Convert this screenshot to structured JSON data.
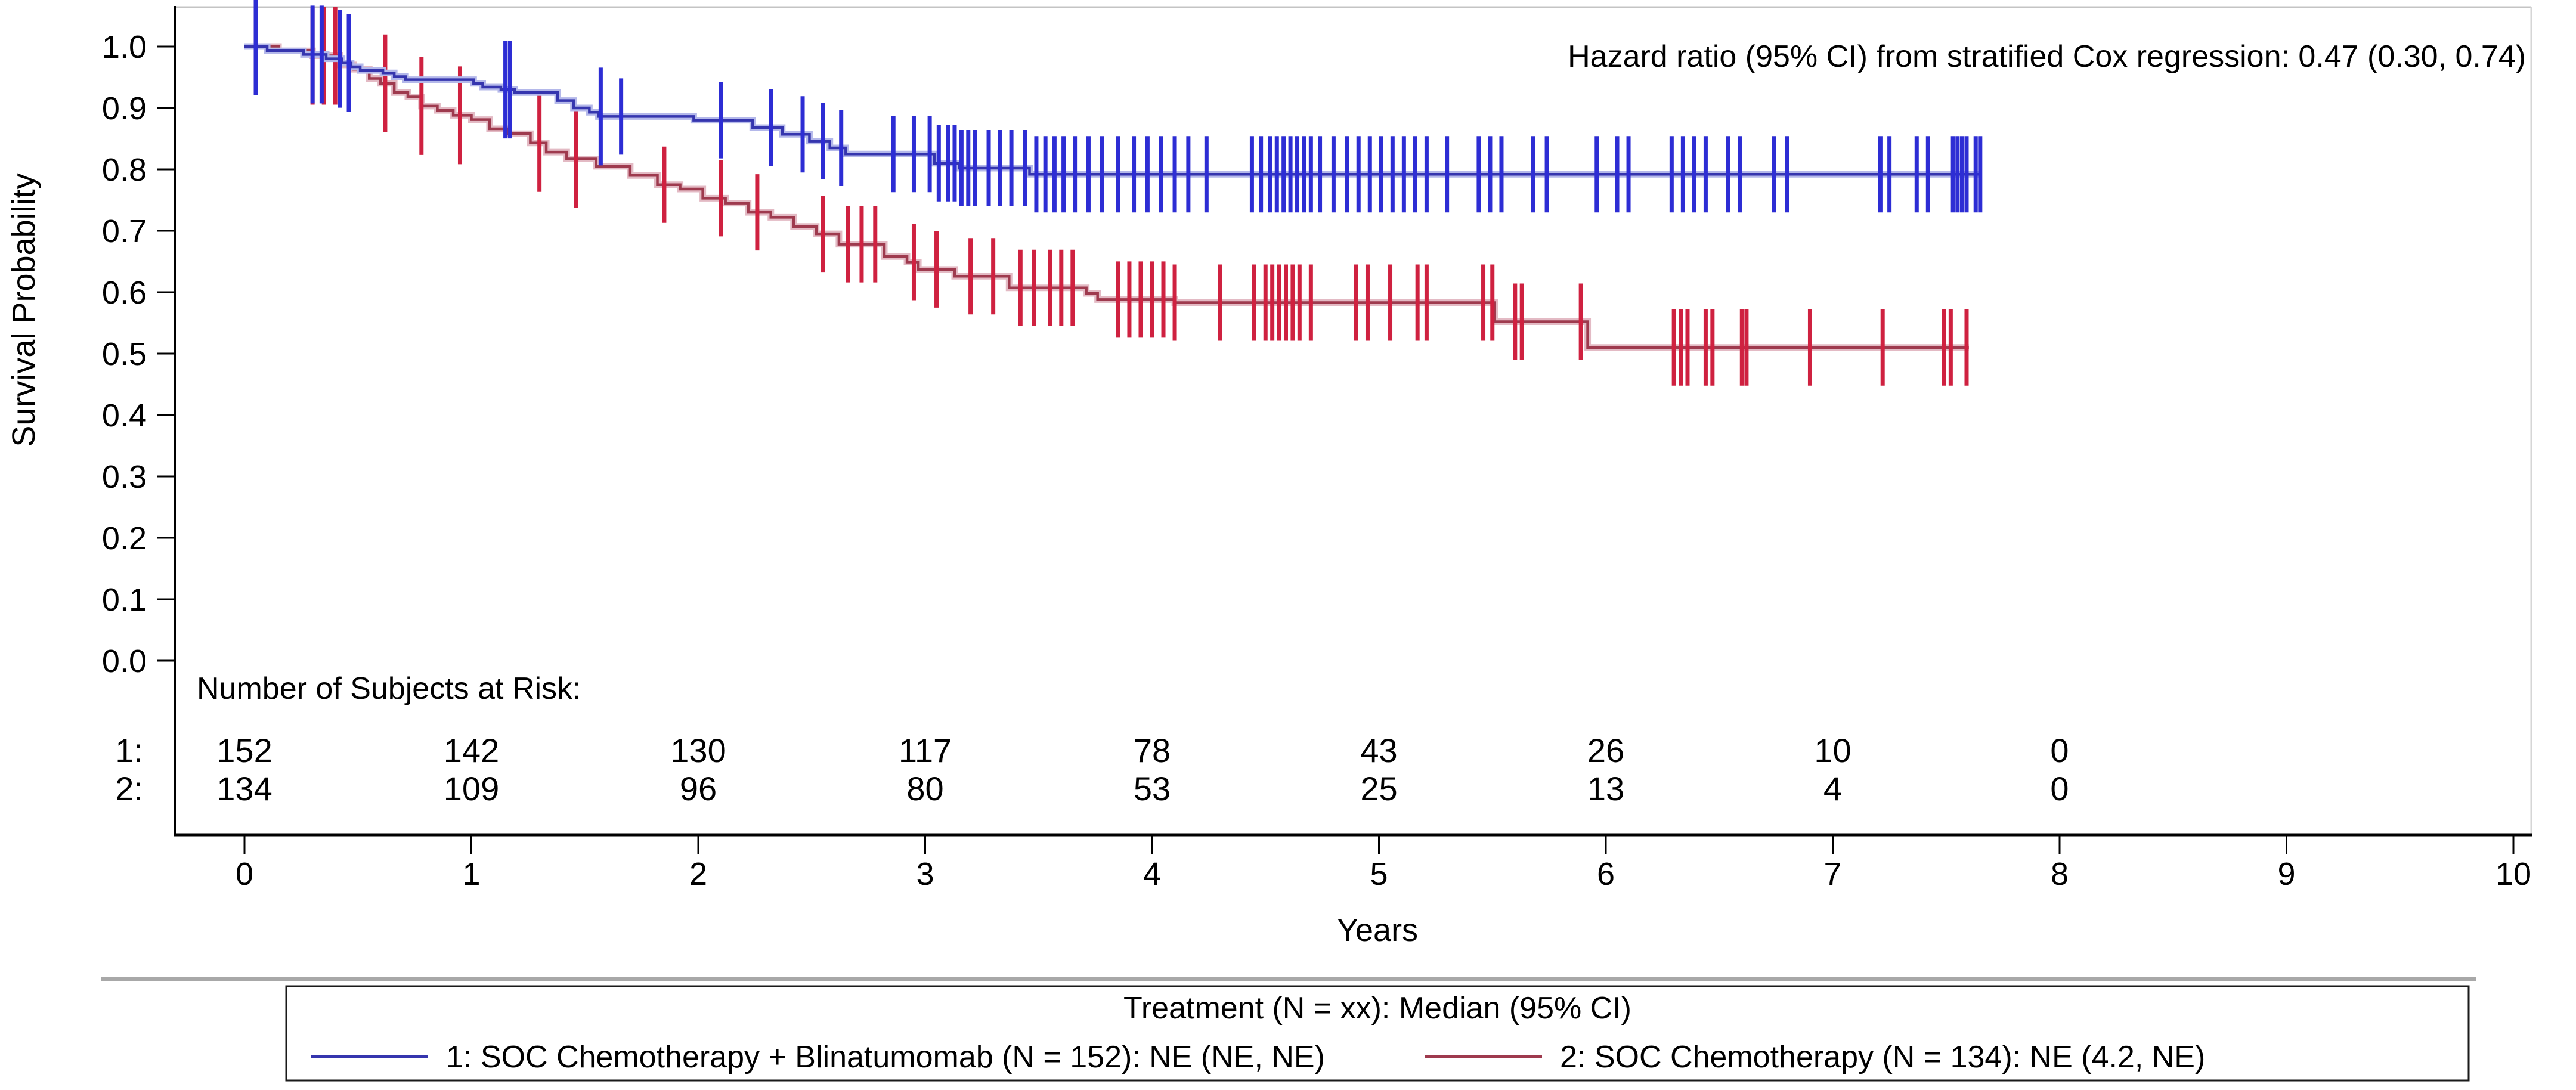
{
  "chart_data": {
    "type": "line",
    "subtype": "kaplan_meier_step",
    "title": "",
    "annotation": "Hazard ratio (95% CI) from stratified Cox regression: 0.47 (0.30, 0.74)",
    "x": {
      "label": "Years",
      "min": 0,
      "max": 10,
      "ticks": [
        0,
        1,
        2,
        3,
        4,
        5,
        6,
        7,
        8,
        9,
        10
      ]
    },
    "y": {
      "label": "Survival Probability",
      "min": 0.0,
      "max": 1.0,
      "ticks": [
        "0.0",
        "0.1",
        "0.2",
        "0.3",
        "0.4",
        "0.5",
        "0.6",
        "0.7",
        "0.8",
        "0.9",
        "1.0"
      ]
    },
    "grid": false,
    "series": [
      {
        "name": "1: SOC Chemotherapy + Blinatumomab",
        "n": 152,
        "median_95ci": "NE (NE, NE)",
        "color": "#3535ae",
        "halo_color": "#b4b8ea",
        "censor_color": "#2d2dd4",
        "end_time": 7.65,
        "steps": [
          [
            0,
            1.0
          ],
          [
            0.1,
            0.993
          ],
          [
            0.26,
            0.987
          ],
          [
            0.36,
            0.98
          ],
          [
            0.43,
            0.973
          ],
          [
            0.47,
            0.967
          ],
          [
            0.51,
            0.961
          ],
          [
            0.61,
            0.957
          ],
          [
            0.66,
            0.951
          ],
          [
            0.71,
            0.946
          ],
          [
            1.01,
            0.94
          ],
          [
            1.05,
            0.934
          ],
          [
            1.13,
            0.93
          ],
          [
            1.19,
            0.925
          ],
          [
            1.38,
            0.912
          ],
          [
            1.45,
            0.9
          ],
          [
            1.52,
            0.893
          ],
          [
            1.56,
            0.886
          ],
          [
            1.98,
            0.88
          ],
          [
            2.24,
            0.868
          ],
          [
            2.37,
            0.857
          ],
          [
            2.49,
            0.846
          ],
          [
            2.58,
            0.835
          ],
          [
            2.65,
            0.825
          ],
          [
            3.04,
            0.81
          ],
          [
            3.15,
            0.802
          ],
          [
            3.46,
            0.792
          ]
        ],
        "censor_times": [
          0.05,
          0.3,
          0.34,
          0.42,
          0.46,
          1.15,
          1.17,
          1.57,
          1.66,
          2.1,
          2.32,
          2.46,
          2.55,
          2.63,
          2.86,
          2.95,
          3.02,
          3.06,
          3.1,
          3.13,
          3.16,
          3.19,
          3.22,
          3.28,
          3.33,
          3.38,
          3.44,
          3.49,
          3.53,
          3.57,
          3.61,
          3.66,
          3.72,
          3.78,
          3.85,
          3.92,
          3.98,
          4.04,
          4.1,
          4.16,
          4.24,
          4.44,
          4.48,
          4.52,
          4.55,
          4.58,
          4.61,
          4.64,
          4.67,
          4.7,
          4.74,
          4.8,
          4.86,
          4.91,
          4.96,
          5.01,
          5.06,
          5.11,
          5.16,
          5.21,
          5.3,
          5.44,
          5.49,
          5.54,
          5.68,
          5.74,
          5.96,
          6.05,
          6.1,
          6.29,
          6.34,
          6.39,
          6.44,
          6.54,
          6.59,
          6.74,
          6.8,
          7.21,
          7.25,
          7.37,
          7.42,
          7.53,
          7.55,
          7.57,
          7.59,
          7.63,
          7.65
        ]
      },
      {
        "name": "2: SOC Chemotherapy",
        "n": 134,
        "median_95ci": "NE (4.2, NE)",
        "color": "#9e3a4e",
        "halo_color": "#e3bac4",
        "censor_color": "#cf2140",
        "end_time": 7.6,
        "steps": [
          [
            0,
            1.0
          ],
          [
            0.15,
            0.993
          ],
          [
            0.3,
            0.985
          ],
          [
            0.42,
            0.97
          ],
          [
            0.48,
            0.963
          ],
          [
            0.55,
            0.948
          ],
          [
            0.6,
            0.94
          ],
          [
            0.66,
            0.925
          ],
          [
            0.72,
            0.918
          ],
          [
            0.78,
            0.903
          ],
          [
            0.85,
            0.896
          ],
          [
            0.92,
            0.888
          ],
          [
            1.0,
            0.881
          ],
          [
            1.08,
            0.866
          ],
          [
            1.16,
            0.858
          ],
          [
            1.26,
            0.843
          ],
          [
            1.33,
            0.828
          ],
          [
            1.42,
            0.817
          ],
          [
            1.55,
            0.805
          ],
          [
            1.7,
            0.79
          ],
          [
            1.82,
            0.775
          ],
          [
            1.92,
            0.768
          ],
          [
            2.02,
            0.753
          ],
          [
            2.12,
            0.745
          ],
          [
            2.22,
            0.73
          ],
          [
            2.32,
            0.722
          ],
          [
            2.42,
            0.707
          ],
          [
            2.52,
            0.695
          ],
          [
            2.62,
            0.678
          ],
          [
            2.82,
            0.658
          ],
          [
            2.92,
            0.649
          ],
          [
            2.97,
            0.637
          ],
          [
            3.13,
            0.626
          ],
          [
            3.37,
            0.607
          ],
          [
            3.71,
            0.598
          ],
          [
            3.76,
            0.588
          ],
          [
            4.1,
            0.583
          ],
          [
            5.51,
            0.552
          ],
          [
            5.92,
            0.51
          ]
        ],
        "censor_times": [
          0.05,
          0.3,
          0.35,
          0.4,
          0.62,
          0.78,
          0.95,
          1.3,
          1.46,
          1.85,
          2.1,
          2.26,
          2.55,
          2.66,
          2.72,
          2.78,
          2.95,
          3.05,
          3.2,
          3.3,
          3.42,
          3.48,
          3.55,
          3.6,
          3.65,
          3.85,
          3.9,
          3.95,
          4.0,
          4.05,
          4.1,
          4.3,
          4.45,
          4.5,
          4.53,
          4.56,
          4.59,
          4.62,
          4.65,
          4.7,
          4.9,
          4.95,
          5.05,
          5.17,
          5.21,
          5.46,
          5.5,
          5.6,
          5.63,
          5.89,
          6.3,
          6.33,
          6.36,
          6.44,
          6.47,
          6.6,
          6.62,
          6.9,
          7.22,
          7.49,
          7.52,
          7.59
        ]
      }
    ],
    "risk_table": {
      "header": "Number of Subjects at Risk:",
      "times": [
        0,
        1,
        2,
        3,
        4,
        5,
        6,
        7,
        8
      ],
      "rows": [
        {
          "label": "1:",
          "color": "#2828cc",
          "counts": [
            152,
            142,
            130,
            117,
            78,
            43,
            26,
            10,
            0
          ]
        },
        {
          "label": "2:",
          "color": "#c22233",
          "counts": [
            134,
            109,
            96,
            80,
            53,
            25,
            13,
            4,
            0
          ]
        }
      ]
    },
    "legend": {
      "title": "Treatment (N = xx): Median (95% CI)",
      "position": "bottom",
      "items": [
        {
          "label": "1: SOC Chemotherapy + Blinatumomab (N = 152): NE (NE, NE)"
        },
        {
          "label": "2: SOC Chemotherapy (N = 134): NE (4.2, NE)"
        }
      ]
    }
  }
}
